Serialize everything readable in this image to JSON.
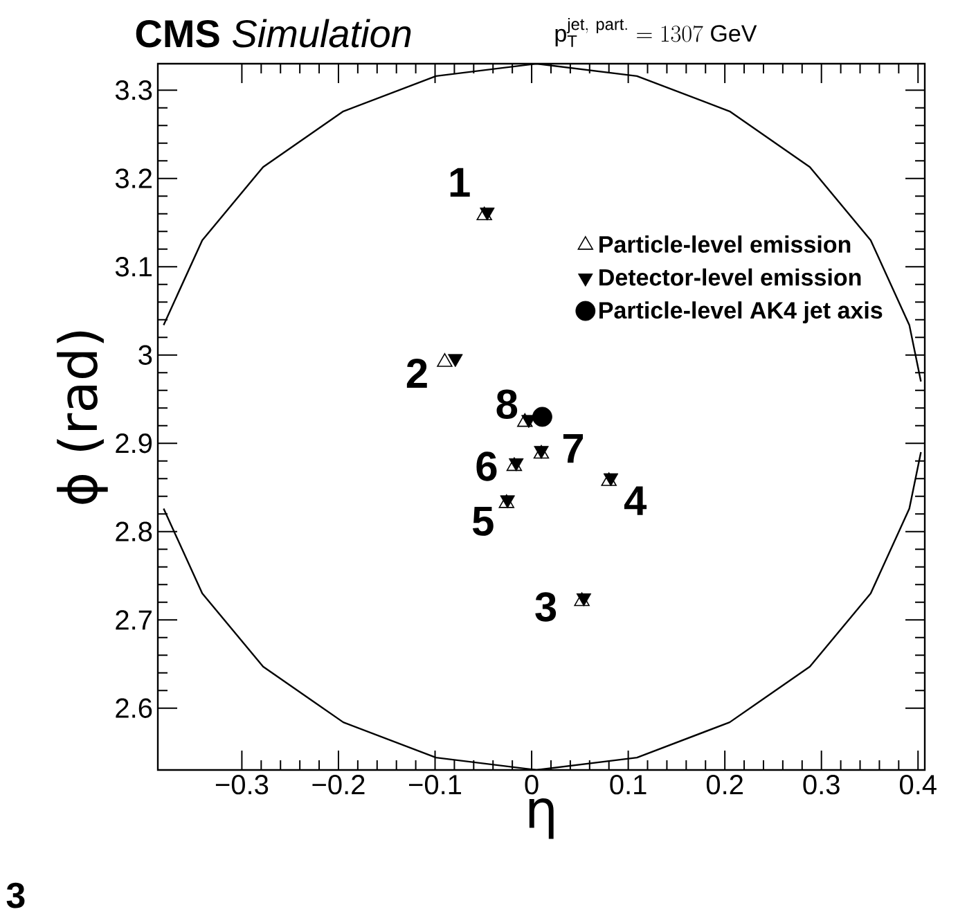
{
  "chart_data": {
    "type": "scatter",
    "title": "**CMS** *Simulation*",
    "subtitle": "\\mathrm{p}_{\\mathrm{T}}^{\\mathrm{jet,\\ part.}} = 1307\\ \\mathrm{GeV}",
    "xlabel": "η",
    "ylabel": "ϕ (rad)",
    "xlim": [
      -0.387,
      0.407
    ],
    "ylim": [
      2.53,
      3.33
    ],
    "xticks": [
      {
        "value": -0.3,
        "label": "−0.3"
      },
      {
        "value": -0.2,
        "label": "−0.2"
      },
      {
        "value": -0.1,
        "label": "−0.1"
      },
      0,
      0.1,
      0.2,
      0.3,
      0.4
    ],
    "yticks": [
      2.6,
      2.7,
      2.8,
      2.9,
      3,
      3.1,
      3.2,
      3.3
    ],
    "legend": "top right",
    "series": [
      {
        "type": "line",
        "color": "#000000",
        "marker": "none",
        "x": [
          -0.381,
          -0.341,
          -0.278,
          -0.195,
          -0.099,
          0.005,
          0.109,
          0.205,
          0.288,
          0.351,
          0.391,
          0.403
        ],
        "values": [
          3.034,
          3.13,
          3.213,
          3.276,
          3.316,
          3.33,
          3.316,
          3.276,
          3.213,
          3.13,
          3.034,
          2.97
        ]
      },
      {
        "type": "line",
        "color": "#000000",
        "marker": "none",
        "x": [
          -0.381,
          -0.341,
          -0.278,
          -0.195,
          -0.099,
          0.005,
          0.109,
          0.205,
          0.288,
          0.351,
          0.391,
          0.403
        ],
        "values": [
          2.826,
          2.73,
          2.647,
          2.584,
          2.544,
          2.53,
          2.544,
          2.584,
          2.647,
          2.73,
          2.826,
          2.89
        ]
      },
      {
        "name": "Particle-level emission",
        "color": "#000000",
        "marker": "triangle",
        "x": [
          -0.049,
          -0.09,
          0.052,
          0.08,
          -0.026,
          -0.018,
          0.01,
          -0.007
        ],
        "values": [
          3.158,
          2.992,
          2.721,
          2.857,
          2.832,
          2.874,
          2.888,
          2.924
        ]
      },
      {
        "name": "Detector-level emission",
        "color": "#000000",
        "marker": "triangle-down",
        "x": [
          -0.046,
          -0.079,
          0.054,
          0.082,
          -0.025,
          -0.016,
          0.01,
          -0.003
        ],
        "values": [
          3.162,
          2.996,
          2.725,
          2.861,
          2.836,
          2.878,
          2.892,
          2.927
        ]
      },
      {
        "name": "Particle-level AK4 jet axis",
        "color": "#000000",
        "marker": "circle",
        "x": [
          0.011
        ],
        "values": [
          2.93
        ]
      }
    ],
    "annotations": [
      {
        "text": "1",
        "x": -0.049,
        "y": 3.158
      },
      {
        "text": "2",
        "x": -0.09,
        "y": 2.992
      },
      {
        "text": "3",
        "x": 0.052,
        "y": 2.721
      },
      {
        "text": "4",
        "x": 0.08,
        "y": 2.857
      },
      {
        "text": "5",
        "x": -0.026,
        "y": 2.832
      },
      {
        "text": "6",
        "x": -0.018,
        "y": 2.874
      },
      {
        "text": "7",
        "x": 0.01,
        "y": 2.888
      },
      {
        "text": "8",
        "x": -0.007,
        "y": 2.924
      },
      "3"
    ]
  }
}
